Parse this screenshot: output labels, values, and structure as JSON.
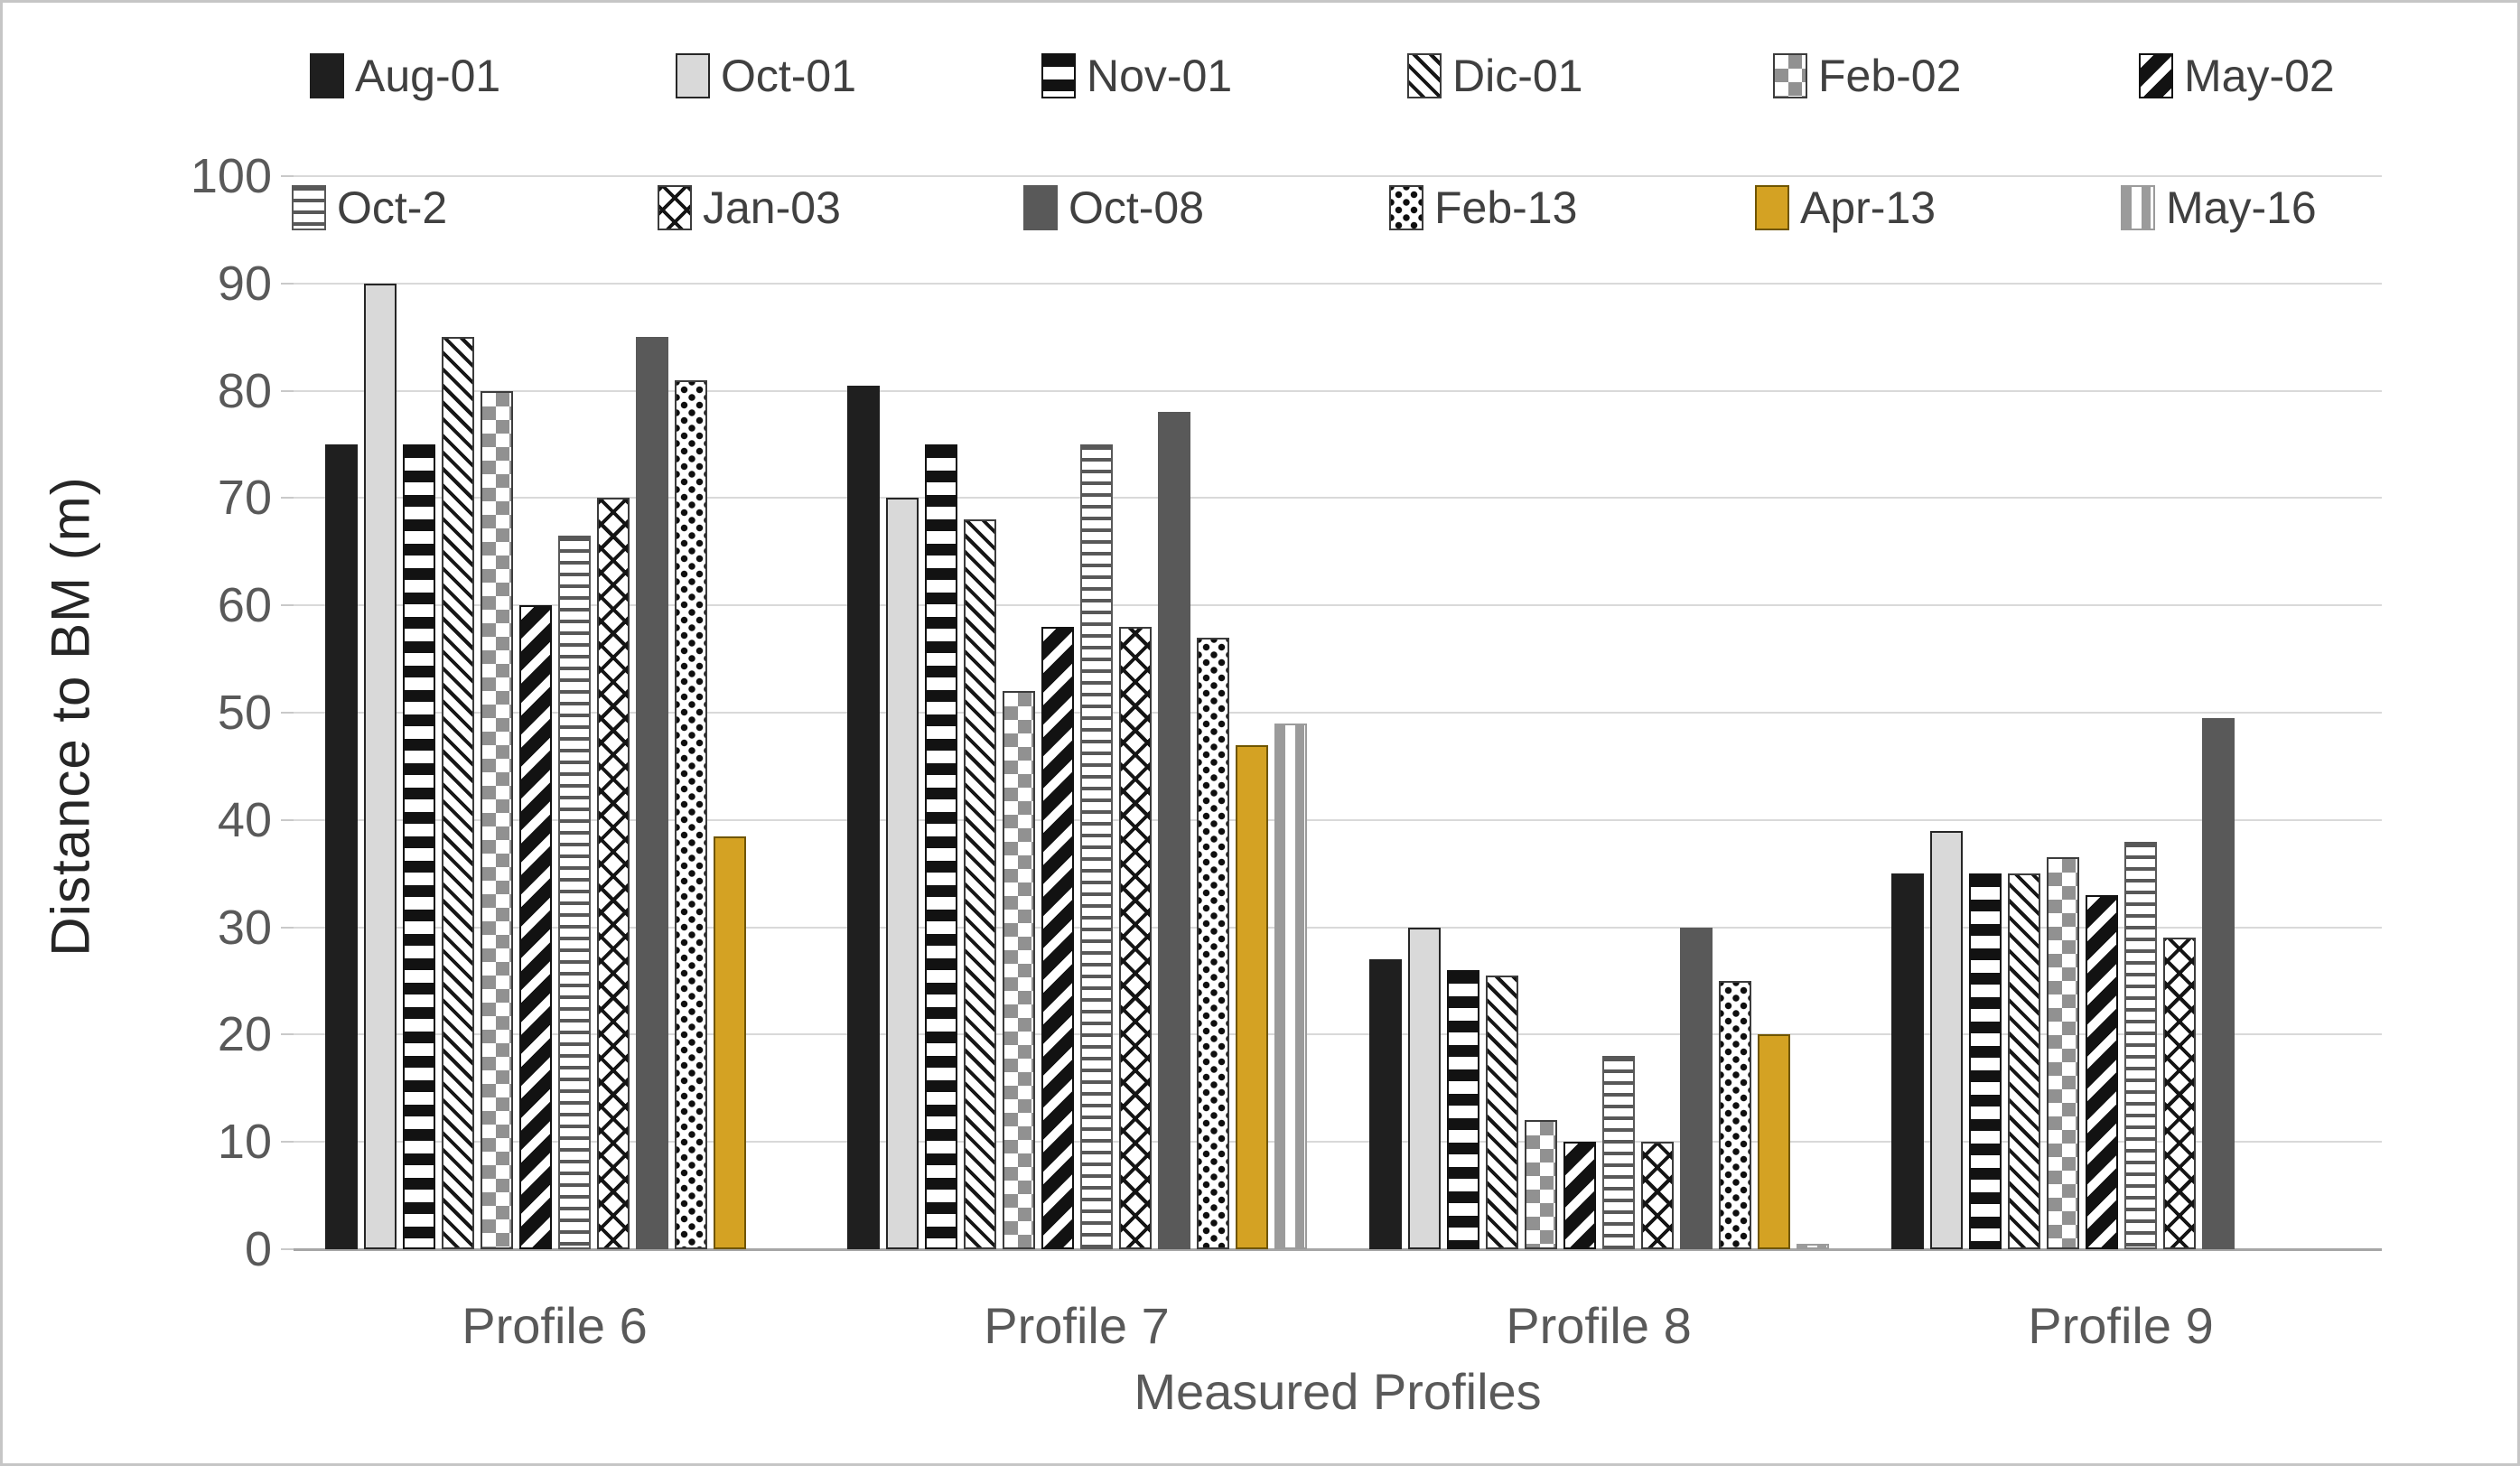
{
  "chart_data": {
    "type": "bar",
    "title": "",
    "xlabel": "Measured Profiles",
    "ylabel": "Distance to BM (m)",
    "ylim": [
      0,
      100
    ],
    "ytick_step": 10,
    "yticks": [
      0,
      10,
      20,
      30,
      40,
      50,
      60,
      70,
      80,
      90,
      100
    ],
    "grid": "horizontal",
    "legend_position": "top",
    "legend_rows": [
      [
        "Aug-01",
        "Oct-01",
        "Nov-01",
        "Dic-01",
        "Feb-02",
        "May-02"
      ],
      [
        "Oct-2",
        "Jan-03",
        "Oct-08",
        "Feb-13",
        "Apr-13",
        "May-16"
      ]
    ],
    "categories": [
      "Profile 6",
      "Profile 7",
      "Profile 8",
      "Profile 9"
    ],
    "series": [
      {
        "name": "Aug-01",
        "pattern": "solid-black",
        "values": [
          75,
          80.5,
          27,
          35
        ]
      },
      {
        "name": "Oct-01",
        "pattern": "solid-lightgray",
        "values": [
          90,
          70,
          30,
          39
        ]
      },
      {
        "name": "Nov-01",
        "pattern": "horizontal-stripes-bold",
        "values": [
          75,
          75,
          26,
          35
        ]
      },
      {
        "name": "Dic-01",
        "pattern": "diagonal-up-thin",
        "values": [
          85,
          68,
          25.5,
          35
        ]
      },
      {
        "name": "Feb-02",
        "pattern": "checkerboard-gray",
        "values": [
          80,
          52,
          12,
          36.5
        ]
      },
      {
        "name": "May-02",
        "pattern": "diagonal-down-bold",
        "values": [
          60,
          58,
          10,
          33
        ]
      },
      {
        "name": "Oct-2",
        "pattern": "horizontal-lines-fine",
        "values": [
          66.5,
          75,
          18,
          38
        ]
      },
      {
        "name": "Jan-03",
        "pattern": "diamond-lattice",
        "values": [
          70,
          58,
          10,
          29
        ]
      },
      {
        "name": "Oct-08",
        "pattern": "solid-darkgray",
        "values": [
          85,
          78,
          30,
          49.5
        ]
      },
      {
        "name": "Feb-13",
        "pattern": "dots-black",
        "values": [
          81,
          57,
          25,
          0
        ]
      },
      {
        "name": "Apr-13",
        "pattern": "solid-gold",
        "values": [
          38.5,
          47,
          20,
          0
        ]
      },
      {
        "name": "May-16",
        "pattern": "dashes-light",
        "values": [
          0,
          49,
          0.5,
          0
        ]
      }
    ],
    "colors": {
      "bar_black": "#1f1f1f",
      "bar_lightgray": "#d9d9d9",
      "bar_darkgray": "#595959",
      "bar_gold": "#d4a223",
      "gridline": "#d9d9d9",
      "axis_line": "#a6a6a6",
      "tick_text": "#595959",
      "axis_title_text": "#262626",
      "legend_text": "#404040",
      "background": "#ffffff",
      "frame_border": "#c6c6c6"
    }
  }
}
